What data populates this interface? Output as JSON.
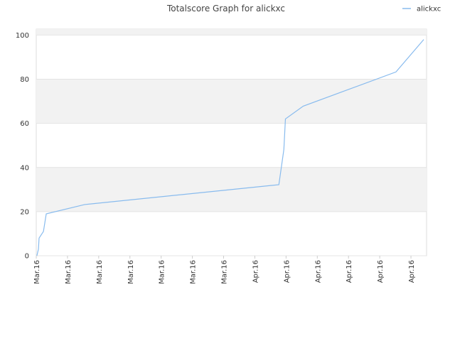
{
  "chart_data": {
    "type": "line",
    "title": "Totalscore Graph for alickxc",
    "series": [
      {
        "name": "alickxc",
        "color": "#88bbee",
        "x": [
          0.02,
          0.07,
          0.09,
          0.23,
          0.32,
          1.55,
          7.77,
          7.93,
          7.98,
          8.55,
          11.52,
          12.41
        ],
        "values": [
          0,
          3,
          8,
          11,
          19,
          23.2,
          32.2,
          48.2,
          62,
          67.8,
          83.3,
          98
        ]
      }
    ],
    "xlim": [
      0,
      12.5
    ],
    "xticks": [
      {
        "value": 0,
        "label": "Mar.16"
      },
      {
        "value": 1,
        "label": "Mar.16"
      },
      {
        "value": 2,
        "label": "Mar.16"
      },
      {
        "value": 3,
        "label": "Mar.16"
      },
      {
        "value": 4,
        "label": "Mar.16"
      },
      {
        "value": 5,
        "label": "Mar.16"
      },
      {
        "value": 6,
        "label": "Mar.16"
      },
      {
        "value": 7,
        "label": "Apr.16"
      },
      {
        "value": 8,
        "label": "Apr.16"
      },
      {
        "value": 9,
        "label": "Apr.16"
      },
      {
        "value": 10,
        "label": "Apr.16"
      },
      {
        "value": 11,
        "label": "Apr.16"
      },
      {
        "value": 12,
        "label": "Apr.16"
      }
    ],
    "ylim": [
      0,
      102.7
    ],
    "yticks": [
      0,
      20,
      40,
      60,
      80,
      100
    ],
    "grid": true,
    "legend": "top-right"
  }
}
